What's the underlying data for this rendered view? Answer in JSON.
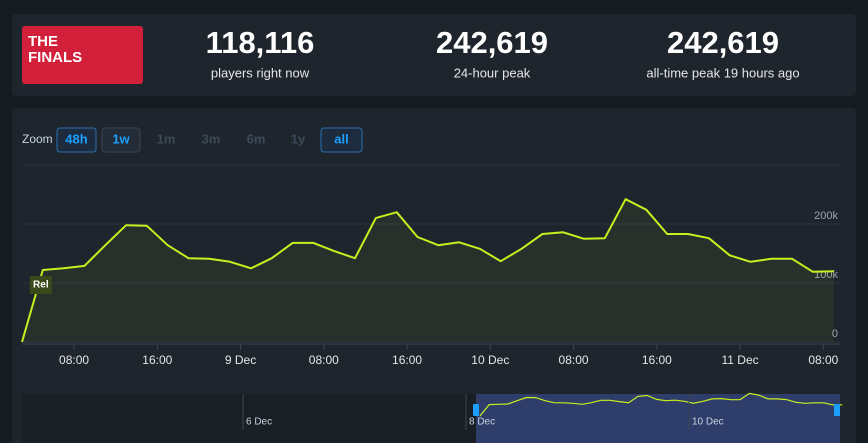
{
  "header": {
    "logo": [
      "THE",
      "FINALS"
    ],
    "stats": [
      {
        "value": "118,116",
        "label": "players right now"
      },
      {
        "value": "242,619",
        "label": "24-hour peak"
      },
      {
        "value": "242,619",
        "label": "all-time peak 19 hours ago"
      }
    ]
  },
  "zoom": {
    "label": "Zoom",
    "options": [
      {
        "text": "48h",
        "state": "active"
      },
      {
        "text": "1w",
        "state": "enabled"
      },
      {
        "text": "1m",
        "state": "disabled"
      },
      {
        "text": "3m",
        "state": "disabled"
      },
      {
        "text": "6m",
        "state": "disabled"
      },
      {
        "text": "1y",
        "state": "disabled"
      },
      {
        "text": "all",
        "state": "active"
      }
    ]
  },
  "chart_data": {
    "type": "line",
    "color": "#c6f01e",
    "grid": true,
    "x": [
      "8 Dec 03:00",
      "8 Dec 05:00",
      "8 Dec 07:00",
      "8 Dec 09:00",
      "8 Dec 11:00",
      "8 Dec 13:00",
      "8 Dec 15:00",
      "8 Dec 17:00",
      "8 Dec 19:00",
      "8 Dec 21:00",
      "8 Dec 23:00",
      "9 Dec 01:00",
      "9 Dec 03:00",
      "9 Dec 05:00",
      "9 Dec 07:00",
      "9 Dec 09:00",
      "9 Dec 11:00",
      "9 Dec 13:00",
      "9 Dec 15:00",
      "9 Dec 17:00",
      "9 Dec 19:00",
      "9 Dec 21:00",
      "9 Dec 23:00",
      "10 Dec 01:00",
      "10 Dec 03:00",
      "10 Dec 05:00",
      "10 Dec 07:00",
      "10 Dec 09:00",
      "10 Dec 11:00",
      "10 Dec 13:00",
      "10 Dec 15:00",
      "10 Dec 17:00",
      "10 Dec 19:00",
      "10 Dec 21:00",
      "10 Dec 23:00",
      "11 Dec 01:00",
      "11 Dec 03:00",
      "11 Dec 05:00",
      "11 Dec 07:00",
      "11 Dec 09:00"
    ],
    "values": [
      0,
      122000,
      125000,
      129000,
      164000,
      198000,
      197000,
      164000,
      142000,
      141000,
      136000,
      125000,
      142000,
      168000,
      168000,
      154000,
      142000,
      210000,
      220000,
      178000,
      164000,
      169000,
      158000,
      137000,
      158000,
      183000,
      186000,
      175000,
      176000,
      242000,
      224000,
      183000,
      183000,
      176000,
      147000,
      136000,
      141000,
      141000,
      119000,
      120000
    ],
    "xlim": [
      "8 Dec 03:00",
      "11 Dec 09:36"
    ],
    "xticks": [
      {
        "value": "8 Dec 08:00",
        "label": "08:00"
      },
      {
        "value": "8 Dec 16:00",
        "label": "16:00"
      },
      {
        "value": "9 Dec 00:00",
        "label": "9 Dec"
      },
      {
        "value": "9 Dec 08:00",
        "label": "08:00"
      },
      {
        "value": "9 Dec 16:00",
        "label": "16:00"
      },
      {
        "value": "10 Dec 00:00",
        "label": "10 Dec"
      },
      {
        "value": "10 Dec 08:00",
        "label": "08:00"
      },
      {
        "value": "10 Dec 16:00",
        "label": "16:00"
      },
      {
        "value": "11 Dec 00:00",
        "label": "11 Dec"
      },
      {
        "value": "11 Dec 08:00",
        "label": "08:00"
      }
    ],
    "ylim": [
      0,
      300000
    ],
    "yticks": [
      0,
      {
        "value": 100000,
        "label": "100k"
      },
      {
        "value": 200000,
        "label": "200k"
      }
    ],
    "annotation": "Rel",
    "navigator_ticks": [
      {
        "value": "6 Dec 00:00",
        "label": "6 Dec"
      },
      {
        "value": "8 Dec 00:00",
        "label": "8 Dec"
      },
      {
        "value": "10 Dec 00:00",
        "label": "10 Dec"
      }
    ]
  }
}
